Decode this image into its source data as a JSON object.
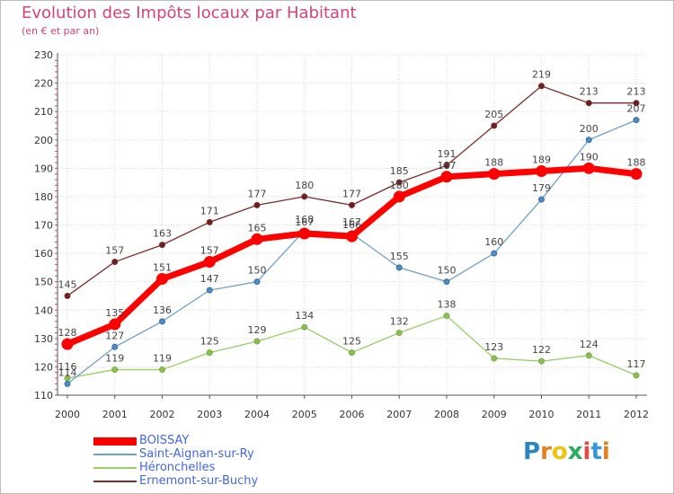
{
  "chart_data": {
    "type": "line",
    "title": "Evolution des Impôts locaux par Habitant",
    "subtitle": "(en € et par an)",
    "categories": [
      "2000",
      "2001",
      "2002",
      "2003",
      "2004",
      "2005",
      "2006",
      "2007",
      "2008",
      "2009",
      "2010",
      "2011",
      "2012"
    ],
    "ylim": [
      110,
      230
    ],
    "yticks": [
      110,
      120,
      130,
      140,
      150,
      160,
      170,
      180,
      190,
      200,
      210,
      220,
      230
    ],
    "grid": true,
    "series": [
      {
        "name": "Ernemont-sur-Buchy",
        "color": "#7b2b2b",
        "values": [
          145,
          157,
          163,
          171,
          177,
          180,
          177,
          185,
          191,
          205,
          219,
          213,
          213
        ]
      },
      {
        "name": "Héronchelles",
        "color": "#99cc66",
        "values": [
          116,
          119,
          119,
          125,
          129,
          134,
          125,
          132,
          138,
          123,
          122,
          124,
          117
        ]
      },
      {
        "name": "Saint-Aignan-sur-Ry",
        "color": "#6f9fcc",
        "values": [
          114,
          127,
          136,
          147,
          150,
          168,
          167,
          155,
          150,
          160,
          179,
          200,
          207
        ]
      },
      {
        "name": "BOISSAY",
        "color": "#ff0000",
        "values": [
          128,
          135,
          151,
          157,
          165,
          167,
          166,
          180,
          187,
          188,
          189,
          190,
          188
        ]
      }
    ]
  },
  "legend": [
    {
      "label": "BOISSAY",
      "color": "#ff0000",
      "text_color": "#4466dd"
    },
    {
      "label": "Saint-Aignan-sur-Ry",
      "color": "#6f9fcc",
      "text_color": "#4466dd"
    },
    {
      "label": "Héronchelles",
      "color": "#99cc66",
      "text_color": "#4466dd"
    },
    {
      "label": "Ernemont-sur-Buchy",
      "color": "#7b2b2b",
      "text_color": "#4466dd"
    }
  ],
  "logo": {
    "text": "Proxiti",
    "letters": [
      {
        "ch": "P",
        "color": "#2e86c1"
      },
      {
        "ch": "r",
        "color": "#e67e22"
      },
      {
        "ch": "o",
        "color": "#f1c40f"
      },
      {
        "ch": "x",
        "color": "#27ae60"
      },
      {
        "ch": "i",
        "color": "#e74c3c"
      },
      {
        "ch": "t",
        "color": "#3498db"
      },
      {
        "ch": "i",
        "color": "#e67e22"
      }
    ]
  }
}
